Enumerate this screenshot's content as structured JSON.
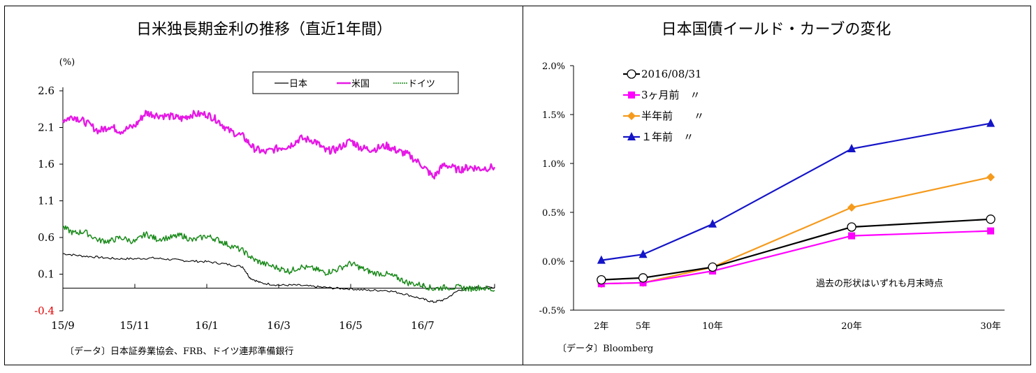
{
  "charts": [
    {
      "title": "日米独長期金利の推移（直近1年間）",
      "unit": "(%)",
      "source": "〔データ〕日本証券業協会、FRB、ドイツ連邦準備銀行",
      "legend": [
        "日本",
        "米国",
        "ドイツ"
      ]
    },
    {
      "title": "日本国債イールド・カーブの変化",
      "source": "〔データ〕Bloomberg",
      "note": "過去の形状はいずれも月末時点",
      "legend": [
        "2016/08/31",
        "3ヶ月前　〃",
        "半年前　　〃",
        "１年前　〃"
      ]
    }
  ],
  "chart_data": [
    {
      "type": "line",
      "title": "日米独長期金利の推移（直近1年間）",
      "ylabel": "(%)",
      "ylim": [
        -0.4,
        2.6
      ],
      "yticks": [
        "2.6",
        "2.1",
        "1.6",
        "1.1",
        "0.6",
        "0.1",
        "-0.4"
      ],
      "ytick_values": [
        2.6,
        2.1,
        1.6,
        1.1,
        0.6,
        0.1,
        -0.4
      ],
      "xlim": [
        0,
        12
      ],
      "xticks": [
        "15/9",
        "15/11",
        "16/1",
        "16/3",
        "16/5",
        "16/7"
      ],
      "xtick_values": [
        0,
        2,
        4,
        6,
        8,
        10
      ],
      "legend_position": "top-right",
      "colors": {
        "日本": "#000000",
        "米国": "#e619e6",
        "ドイツ": "#1a8a1a"
      },
      "series": [
        {
          "name": "日本",
          "x": [
            0,
            0.5,
            1,
            1.5,
            2,
            2.5,
            3,
            3.5,
            4,
            4.5,
            5,
            5.2,
            5.5,
            6,
            6.5,
            7,
            7.5,
            8,
            8.5,
            9,
            9.5,
            10,
            10.3,
            10.6,
            11,
            11.5,
            12
          ],
          "y": [
            0.38,
            0.35,
            0.33,
            0.31,
            0.31,
            0.32,
            0.3,
            0.28,
            0.27,
            0.24,
            0.2,
            0.05,
            -0.02,
            -0.05,
            -0.05,
            -0.07,
            -0.09,
            -0.1,
            -0.12,
            -0.12,
            -0.17,
            -0.24,
            -0.28,
            -0.25,
            -0.12,
            -0.08,
            -0.08
          ]
        },
        {
          "name": "米国",
          "x": [
            0,
            0.3,
            0.6,
            1,
            1.3,
            1.6,
            2,
            2.3,
            2.6,
            3,
            3.3,
            3.6,
            4,
            4.3,
            4.6,
            5,
            5.3,
            5.6,
            6,
            6.3,
            6.6,
            7,
            7.3,
            7.6,
            8,
            8.3,
            8.6,
            9,
            9.3,
            9.6,
            10,
            10.3,
            10.6,
            11,
            11.3,
            11.6,
            12
          ],
          "y": [
            2.2,
            2.25,
            2.18,
            2.05,
            2.12,
            2.05,
            2.12,
            2.3,
            2.27,
            2.25,
            2.22,
            2.28,
            2.28,
            2.2,
            2.06,
            1.98,
            1.82,
            1.76,
            1.82,
            1.85,
            1.95,
            1.92,
            1.78,
            1.8,
            1.92,
            1.82,
            1.8,
            1.85,
            1.78,
            1.73,
            1.58,
            1.42,
            1.6,
            1.52,
            1.56,
            1.54,
            1.56
          ]
        },
        {
          "name": "ドイツ",
          "x": [
            0,
            0.3,
            0.6,
            1,
            1.3,
            1.6,
            2,
            2.3,
            2.6,
            3,
            3.3,
            3.6,
            4,
            4.3,
            4.6,
            5,
            5.3,
            5.6,
            6,
            6.3,
            6.6,
            7,
            7.3,
            7.6,
            8,
            8.3,
            8.6,
            9,
            9.3,
            9.6,
            10,
            10.3,
            10.6,
            11,
            11.3,
            11.6,
            12
          ],
          "y": [
            0.74,
            0.66,
            0.68,
            0.56,
            0.55,
            0.6,
            0.54,
            0.65,
            0.58,
            0.6,
            0.63,
            0.56,
            0.62,
            0.57,
            0.5,
            0.42,
            0.3,
            0.24,
            0.18,
            0.14,
            0.2,
            0.17,
            0.12,
            0.16,
            0.25,
            0.18,
            0.12,
            0.1,
            0.05,
            -0.02,
            -0.05,
            -0.1,
            -0.08,
            -0.08,
            -0.1,
            -0.08,
            -0.12
          ]
        }
      ]
    },
    {
      "type": "line",
      "title": "日本国債イールド・カーブの変化",
      "ylim": [
        -0.5,
        2.0
      ],
      "yticks": [
        "2.0%",
        "1.5%",
        "1.0%",
        "0.5%",
        "0.0%",
        "-0.5%"
      ],
      "ytick_values": [
        2.0,
        1.5,
        1.0,
        0.5,
        0.0,
        -0.5
      ],
      "xlim": [
        0,
        31
      ],
      "xticks": [
        "2年",
        "5年",
        "10年",
        "20年",
        "30年"
      ],
      "xtick_values": [
        2,
        5,
        10,
        20,
        30
      ],
      "legend_position": "top-left",
      "series": [
        {
          "name": "2016/08/31",
          "x": [
            2,
            5,
            10,
            20,
            30
          ],
          "y": [
            -0.19,
            -0.17,
            -0.06,
            0.35,
            0.43
          ],
          "color": "#000000",
          "marker": "circle"
        },
        {
          "name": "3ヶ月前　〃",
          "x": [
            2,
            5,
            10,
            20,
            30
          ],
          "y": [
            -0.23,
            -0.22,
            -0.1,
            0.26,
            0.31
          ],
          "color": "#ff00ff",
          "marker": "square"
        },
        {
          "name": "半年前　　〃",
          "x": [
            2,
            5,
            10,
            20,
            30
          ],
          "y": [
            -0.23,
            -0.22,
            -0.06,
            0.55,
            0.86
          ],
          "color": "#f59a1c",
          "marker": "diamond"
        },
        {
          "name": "１年前　〃",
          "x": [
            2,
            5,
            10,
            20,
            30
          ],
          "y": [
            0.01,
            0.07,
            0.38,
            1.15,
            1.41
          ],
          "color": "#1414c8",
          "marker": "triangle"
        }
      ]
    }
  ]
}
